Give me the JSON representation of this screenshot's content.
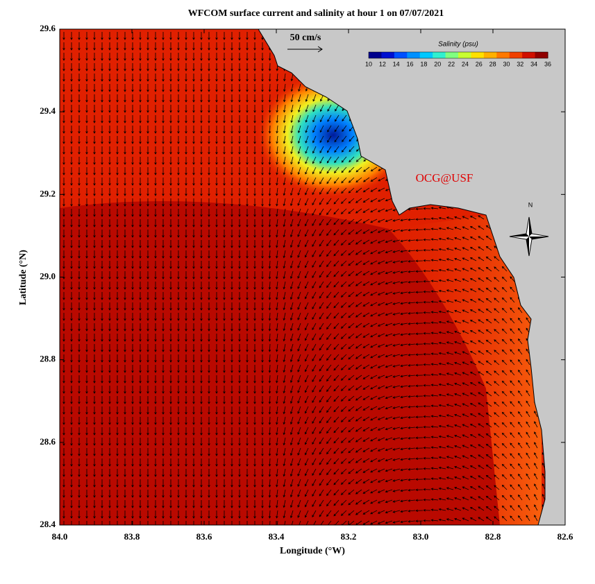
{
  "title": "WFCOM surface current and salinity at hour 1 on 07/07/2021",
  "map": {
    "xlabel": "Longitude (°W)",
    "ylabel": "Latitude (°N)",
    "xlim": [
      84,
      82.6
    ],
    "ylim": [
      28.4,
      29.6
    ],
    "xticks": [
      {
        "value": 84,
        "label": "84.0"
      },
      83.8,
      83.6,
      83.4,
      83.2,
      {
        "value": 83,
        "label": "83.0"
      },
      82.8,
      82.6
    ],
    "yticks": [
      28.4,
      28.6,
      28.8,
      {
        "value": 29,
        "label": "29.0"
      },
      29.2,
      29.4,
      29.6
    ]
  },
  "colorbar": {
    "title": "Salinity (psu)",
    "ticks": [
      10,
      12,
      14,
      16,
      18,
      20,
      22,
      24,
      26,
      28,
      30,
      32,
      34,
      36
    ]
  },
  "scale_label": "50 cm/s",
  "watermark": "OCG@USF",
  "compass": "N"
}
